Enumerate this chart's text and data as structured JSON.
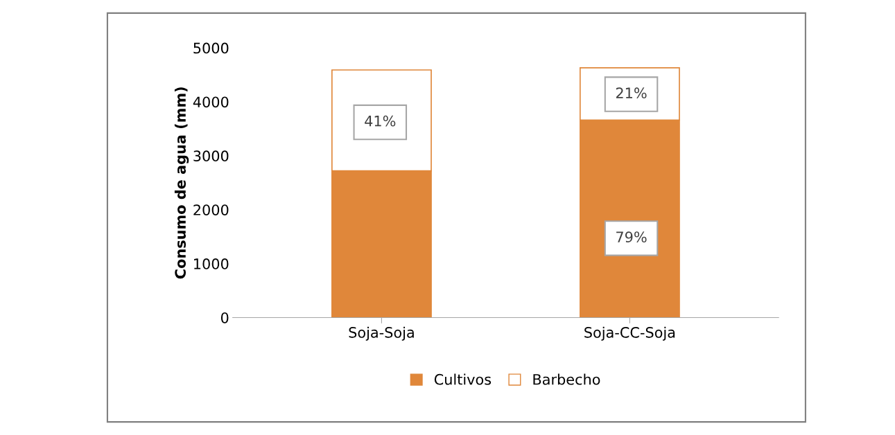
{
  "chart_data": {
    "type": "bar",
    "stacked": true,
    "ylabel": "Consumo de agua (mm)",
    "categories": [
      "Soja-Soja",
      "Soja-CC-Soja"
    ],
    "series": [
      {
        "name": "Cultivos",
        "color": "#e0873a",
        "values": [
          2720,
          3660
        ]
      },
      {
        "name": "Barbecho",
        "color": "#ffffff",
        "values": [
          1870,
          970
        ]
      }
    ],
    "annotations": [
      "41%",
      "21%",
      "79%"
    ],
    "ylim": [
      0,
      5000
    ],
    "yticks": [
      0,
      1000,
      2000,
      3000,
      4000,
      5000
    ],
    "grid": false,
    "legend": "bottom"
  }
}
